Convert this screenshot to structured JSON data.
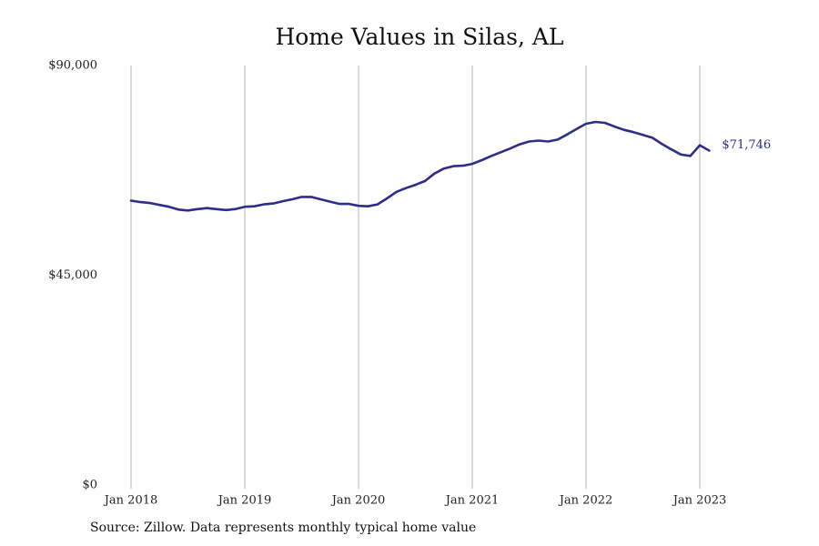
{
  "chart_data": {
    "type": "line",
    "title": "Home Values in Silas, AL",
    "xlabel": "",
    "ylabel": "",
    "ylim": [
      0,
      90000
    ],
    "y_ticks": [
      0,
      45000,
      90000
    ],
    "y_tick_labels": [
      "$0",
      "$45,000",
      "$90,000"
    ],
    "x_range": [
      "2018-01",
      "2023-03"
    ],
    "x_ticks": [
      "2018-01",
      "2019-01",
      "2020-01",
      "2021-01",
      "2022-01",
      "2023-01"
    ],
    "x_tick_labels": [
      "Jan 2018",
      "Jan 2019",
      "Jan 2020",
      "Jan 2021",
      "Jan 2022",
      "Jan 2023"
    ],
    "grid": "vertical lines at January of each year",
    "legend": "none",
    "series": [
      {
        "color": "#2e2d8a",
        "end_label": "$71,746",
        "x": [
          "2018-01",
          "2018-02",
          "2018-03",
          "2018-04",
          "2018-05",
          "2018-06",
          "2018-07",
          "2018-08",
          "2018-09",
          "2018-10",
          "2018-11",
          "2018-12",
          "2019-01",
          "2019-02",
          "2019-03",
          "2019-04",
          "2019-05",
          "2019-06",
          "2019-07",
          "2019-08",
          "2019-09",
          "2019-10",
          "2019-11",
          "2019-12",
          "2020-01",
          "2020-02",
          "2020-03",
          "2020-04",
          "2020-05",
          "2020-06",
          "2020-07",
          "2020-08",
          "2020-09",
          "2020-10",
          "2020-11",
          "2020-12",
          "2021-01",
          "2021-02",
          "2021-03",
          "2021-04",
          "2021-05",
          "2021-06",
          "2021-07",
          "2021-08",
          "2021-09",
          "2021-10",
          "2021-11",
          "2021-12",
          "2022-01",
          "2022-02",
          "2022-03",
          "2022-04",
          "2022-05",
          "2022-06",
          "2022-07",
          "2022-08",
          "2022-09",
          "2022-10",
          "2022-11",
          "2022-12",
          "2023-01",
          "2023-02"
        ],
        "y": [
          61000,
          60700,
          60500,
          60100,
          59700,
          59100,
          58900,
          59200,
          59400,
          59200,
          59000,
          59200,
          59700,
          59800,
          60200,
          60400,
          60900,
          61300,
          61800,
          61800,
          61300,
          60800,
          60300,
          60300,
          59900,
          59800,
          60200,
          61500,
          62900,
          63700,
          64400,
          65200,
          66800,
          67900,
          68400,
          68500,
          68900,
          69700,
          70600,
          71400,
          72200,
          73100,
          73700,
          73900,
          73700,
          74100,
          75200,
          76400,
          77500,
          77900,
          77700,
          76900,
          76200,
          75700,
          75100,
          74500,
          73200,
          72000,
          70900,
          70600,
          72900,
          71746
        ]
      }
    ]
  },
  "source": "Source: Zillow. Data represents monthly typical home value"
}
